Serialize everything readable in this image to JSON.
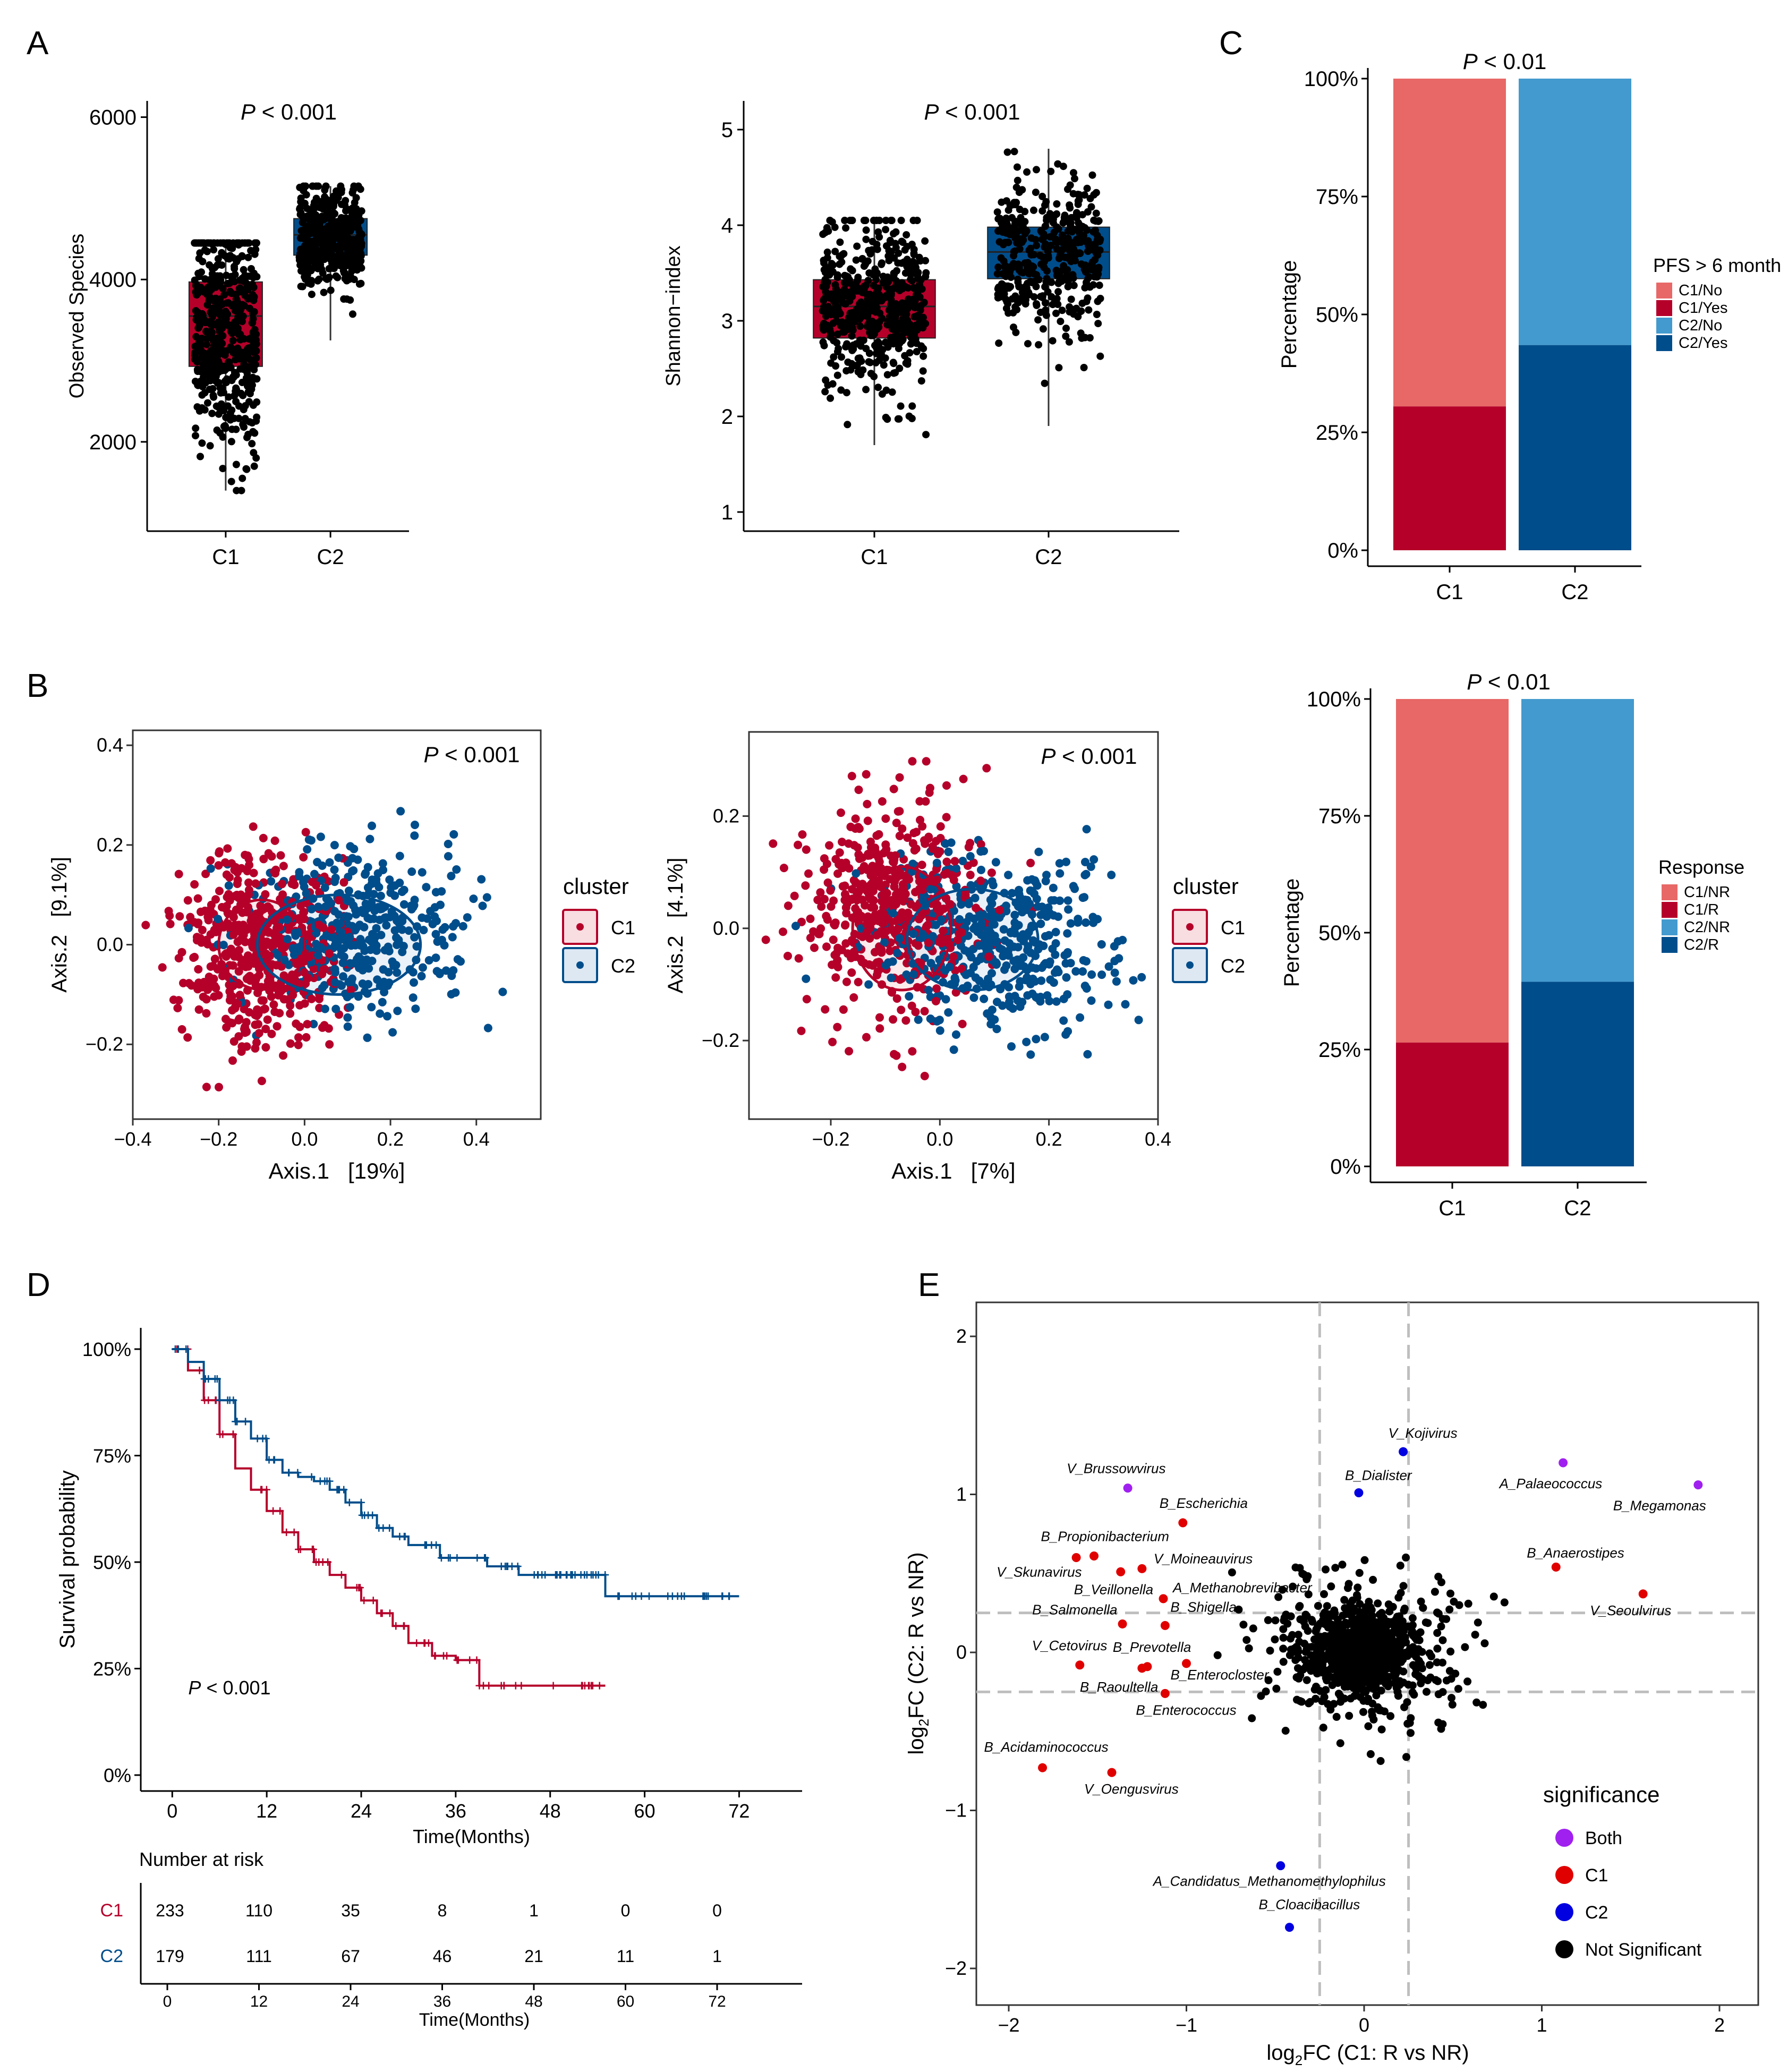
{
  "colors": {
    "c1": "#B5002A",
    "c2": "#004D8B",
    "c1_light": "#E76866",
    "c2_light": "#439ACE",
    "c1_fill": "#F8DDE1",
    "c2_fill": "#DDE8F3",
    "both": "#A020F0",
    "sig_c1": "#E00000",
    "sig_c2": "#0000E0",
    "ns": "#000000",
    "guide": "#BEBEBE"
  },
  "panel_labels": [
    "A",
    "B",
    "C",
    "D",
    "E"
  ],
  "chart_data": [
    {
      "id": "A1",
      "type": "box",
      "categories": [
        "C1",
        "C2"
      ],
      "ylabel": "Observed Species",
      "ylim": [
        900,
        6200
      ],
      "yticks": [
        2000,
        4000,
        6000
      ],
      "ptext": "< 0.001",
      "boxes": [
        {
          "name": "C1",
          "q1": 2930,
          "median": 3550,
          "q3": 3970,
          "min": 1400,
          "max": 4450
        },
        {
          "name": "C2",
          "q1": 4300,
          "median": 4550,
          "q3": 4750,
          "min": 3250,
          "max": 5150
        }
      ]
    },
    {
      "id": "A2",
      "type": "box",
      "categories": [
        "C1",
        "C2"
      ],
      "ylabel": "Shannon−index",
      "ylim": [
        0.8,
        5.3
      ],
      "yticks": [
        1,
        2,
        3,
        4,
        5
      ],
      "ptext": "< 0.001",
      "boxes": [
        {
          "name": "C1",
          "q1": 2.82,
          "median": 3.15,
          "q3": 3.43,
          "min": 1.7,
          "max": 4.05
        },
        {
          "name": "C2",
          "q1": 3.44,
          "median": 3.72,
          "q3": 3.98,
          "min": 1.9,
          "max": 4.8
        }
      ]
    },
    {
      "id": "C1",
      "type": "stacked-bar",
      "categories": [
        "C1",
        "C2"
      ],
      "ylabel": "Percentage",
      "yticks": [
        "0%",
        "25%",
        "50%",
        "75%",
        "100%"
      ],
      "ptext": "< 0.01",
      "legend_title": "PFS > 6 month",
      "legend": [
        "C1/No",
        "C1/Yes",
        "C2/No",
        "C2/Yes"
      ],
      "bottom_share": [
        0.305,
        0.435
      ]
    },
    {
      "id": "C2",
      "type": "stacked-bar",
      "categories": [
        "C1",
        "C2"
      ],
      "ylabel": "Percentage",
      "yticks": [
        "0%",
        "25%",
        "50%",
        "75%",
        "100%"
      ],
      "ptext": "< 0.01",
      "legend_title": "Response",
      "legend": [
        "C1/NR",
        "C1/R",
        "C2/NR",
        "C2/R"
      ],
      "bottom_share": [
        0.265,
        0.395
      ]
    },
    {
      "id": "B1",
      "type": "scatter",
      "xlabel": "Axis.1   [19%]",
      "ylabel": "Axis.2   [9.1%]",
      "xlim": [
        -0.4,
        0.55
      ],
      "ylim": [
        -0.35,
        0.43
      ],
      "xticks": [
        "−0.4",
        "−0.2",
        "0.0",
        "0.2",
        "0.4"
      ],
      "xtick_values": [
        -0.4,
        -0.2,
        0.0,
        0.2,
        0.4
      ],
      "yticks": [
        "−0.2",
        "0.0",
        "0.2",
        "0.4"
      ],
      "ytick_values": [
        -0.2,
        0.0,
        0.2,
        0.4
      ],
      "ptext": "< 0.001",
      "legend_title": "cluster",
      "legend": [
        "C1",
        "C2"
      ],
      "series": [
        {
          "name": "C1",
          "center": [
            -0.1,
            0.0
          ],
          "spread": [
            0.12,
            0.13
          ],
          "n": 520
        },
        {
          "name": "C2",
          "center": [
            0.12,
            0.02
          ],
          "spread": [
            0.16,
            0.11
          ],
          "n": 420
        }
      ],
      "ellipses": [
        {
          "name": "C1",
          "cx": -0.1,
          "cy": 0.0,
          "rx": 0.1,
          "ry": 0.09
        },
        {
          "name": "C2",
          "cx": 0.08,
          "cy": 0.0,
          "rx": 0.19,
          "ry": 0.1
        }
      ]
    },
    {
      "id": "B2",
      "type": "scatter",
      "xlabel": "Axis.1   [7%]",
      "ylabel": "Axis.2   [4.1%]",
      "xlim": [
        -0.35,
        0.4
      ],
      "ylim": [
        -0.34,
        0.35
      ],
      "xticks": [
        "−0.2",
        "0.0",
        "0.2",
        "0.4"
      ],
      "xtick_values": [
        -0.2,
        0.0,
        0.2,
        0.4
      ],
      "yticks": [
        "−0.2",
        "0.0",
        "0.2"
      ],
      "ytick_values": [
        -0.2,
        0.0,
        0.2
      ],
      "ptext": "< 0.001",
      "legend_title": "cluster",
      "legend": [
        "C1",
        "C2"
      ],
      "series": [
        {
          "name": "C1",
          "center": [
            -0.08,
            0.03
          ],
          "spread": [
            0.12,
            0.13
          ],
          "n": 500
        },
        {
          "name": "C2",
          "center": [
            0.1,
            -0.02
          ],
          "spread": [
            0.14,
            0.11
          ],
          "n": 450
        }
      ],
      "ellipses": [
        {
          "name": "C1",
          "cx": -0.07,
          "cy": 0.0,
          "rx": 0.09,
          "ry": 0.11
        },
        {
          "name": "C2",
          "cx": 0.06,
          "cy": -0.02,
          "rx": 0.12,
          "ry": 0.09
        }
      ]
    },
    {
      "id": "D",
      "type": "line",
      "subtype": "kaplan-meier",
      "xlabel": "Time(Months)",
      "ylabel": "Survival probability",
      "xlim": [
        -4,
        80
      ],
      "ylim": [
        0,
        1.05
      ],
      "xticks": [
        0,
        12,
        24,
        36,
        48,
        60,
        72
      ],
      "yticks": [
        "0%",
        "25%",
        "50%",
        "75%",
        "100%"
      ],
      "ptext": "< 0.001",
      "series": [
        {
          "name": "C1",
          "points": [
            [
              0,
              1.0
            ],
            [
              2,
              0.95
            ],
            [
              4,
              0.88
            ],
            [
              6,
              0.8
            ],
            [
              8,
              0.72
            ],
            [
              10,
              0.67
            ],
            [
              12,
              0.62
            ],
            [
              14,
              0.57
            ],
            [
              16,
              0.53
            ],
            [
              18,
              0.5
            ],
            [
              20,
              0.47
            ],
            [
              22,
              0.44
            ],
            [
              24,
              0.41
            ],
            [
              26,
              0.38
            ],
            [
              28,
              0.35
            ],
            [
              30,
              0.31
            ],
            [
              33,
              0.28
            ],
            [
              36,
              0.27
            ],
            [
              39,
              0.21
            ],
            [
              45,
              0.21
            ],
            [
              55,
              0.21
            ]
          ]
        },
        {
          "name": "C2",
          "points": [
            [
              0,
              1.0
            ],
            [
              2,
              0.97
            ],
            [
              4,
              0.93
            ],
            [
              6,
              0.88
            ],
            [
              8,
              0.83
            ],
            [
              10,
              0.79
            ],
            [
              12,
              0.74
            ],
            [
              14,
              0.71
            ],
            [
              16,
              0.7
            ],
            [
              18,
              0.69
            ],
            [
              20,
              0.67
            ],
            [
              22,
              0.64
            ],
            [
              24,
              0.61
            ],
            [
              26,
              0.58
            ],
            [
              28,
              0.56
            ],
            [
              30,
              0.54
            ],
            [
              34,
              0.51
            ],
            [
              40,
              0.49
            ],
            [
              44,
              0.47
            ],
            [
              48,
              0.47
            ],
            [
              55,
              0.42
            ],
            [
              72,
              0.42
            ]
          ]
        }
      ]
    },
    {
      "id": "D-risk",
      "type": "table",
      "title": "Number at risk",
      "xlabel": "Time(Months)",
      "times": [
        0,
        12,
        24,
        36,
        48,
        60,
        72
      ],
      "rows": [
        {
          "name": "C1",
          "values": [
            233,
            110,
            35,
            8,
            1,
            0,
            0
          ]
        },
        {
          "name": "C2",
          "values": [
            179,
            111,
            67,
            46,
            21,
            11,
            1
          ]
        }
      ]
    },
    {
      "id": "E",
      "type": "scatter",
      "xlabel_pre": "log",
      "xlabel_sub": "2",
      "xlabel_post": "FC (C1: R vs NR)",
      "ylabel_pre": "log",
      "ylabel_sub": "2",
      "ylabel_post": "FC (C2: R vs NR)",
      "xlim": [
        -2.3,
        2.2
      ],
      "ylim": [
        -2.2,
        2.2
      ],
      "xticks": [
        "−2",
        "−1",
        "0",
        "1",
        "2"
      ],
      "xtick_values": [
        -2,
        -1,
        0,
        1,
        2
      ],
      "yticks": [
        "−2",
        "−1",
        "0",
        "1",
        "2"
      ],
      "ytick_values": [
        -2,
        -1,
        0,
        1,
        2
      ],
      "thresholds": [
        -0.25,
        0.25
      ],
      "legend_title": "significance",
      "legend": [
        "Both",
        "C1",
        "C2",
        "Not Significant"
      ],
      "labeled_points": [
        {
          "label": "V_Kojivirus",
          "x": 0.22,
          "y": 1.27,
          "sig": "C2"
        },
        {
          "label": "B_Dialister",
          "x": -0.03,
          "y": 1.01,
          "sig": "C2"
        },
        {
          "label": "A_Palaeococcus",
          "x": 1.12,
          "y": 1.2,
          "sig": "Both"
        },
        {
          "label": "B_Megamonas",
          "x": 1.88,
          "y": 1.06,
          "sig": "Both"
        },
        {
          "label": "V_Brussowvirus",
          "x": -1.33,
          "y": 1.04,
          "sig": "Both"
        },
        {
          "label": "B_Escherichia",
          "x": -1.02,
          "y": 0.82,
          "sig": "C1"
        },
        {
          "label": "B_Propionibacterium",
          "x": -1.52,
          "y": 0.61,
          "sig": "C1"
        },
        {
          "label": "V_Skunavirus",
          "x": -1.62,
          "y": 0.6,
          "sig": "C1"
        },
        {
          "label": "V_Moineauvirus",
          "x": -1.25,
          "y": 0.53,
          "sig": "C1"
        },
        {
          "label": "B_Veillonella",
          "x": -1.37,
          "y": 0.51,
          "sig": "C1"
        },
        {
          "label": "A_Methanobrevibacter",
          "x": -1.13,
          "y": 0.34,
          "sig": "C1"
        },
        {
          "label": "B_Anaerostipes",
          "x": 1.08,
          "y": 0.54,
          "sig": "C1"
        },
        {
          "label": "V_Seoulvirus",
          "x": 1.57,
          "y": 0.37,
          "sig": "C1"
        },
        {
          "label": "B_Salmonella",
          "x": -1.36,
          "y": 0.18,
          "sig": "C1"
        },
        {
          "label": "B_Shigella",
          "x": -1.12,
          "y": 0.17,
          "sig": "C1"
        },
        {
          "label": "V_Cetovirus",
          "x": -1.6,
          "y": -0.08,
          "sig": "C1"
        },
        {
          "label": "B_Prevotella",
          "x": -1.22,
          "y": -0.09,
          "sig": "C1"
        },
        {
          "label": "B_Raoultella",
          "x": -1.25,
          "y": -0.1,
          "sig": "C1"
        },
        {
          "label": "B_Enterocloster",
          "x": -1.0,
          "y": -0.07,
          "sig": "C1"
        },
        {
          "label": "B_Enterococcus",
          "x": -1.12,
          "y": -0.26,
          "sig": "C1"
        },
        {
          "label": "B_Acidaminococcus",
          "x": -1.81,
          "y": -0.73,
          "sig": "C1"
        },
        {
          "label": "V_Oengusvirus",
          "x": -1.42,
          "y": -0.76,
          "sig": "C1"
        },
        {
          "label": "A_Candidatus_Methanomethylophilus",
          "x": -0.47,
          "y": -1.35,
          "sig": "C2"
        },
        {
          "label": "B_Cloacibacillus",
          "x": -0.42,
          "y": -1.74,
          "sig": "C2"
        }
      ]
    }
  ]
}
